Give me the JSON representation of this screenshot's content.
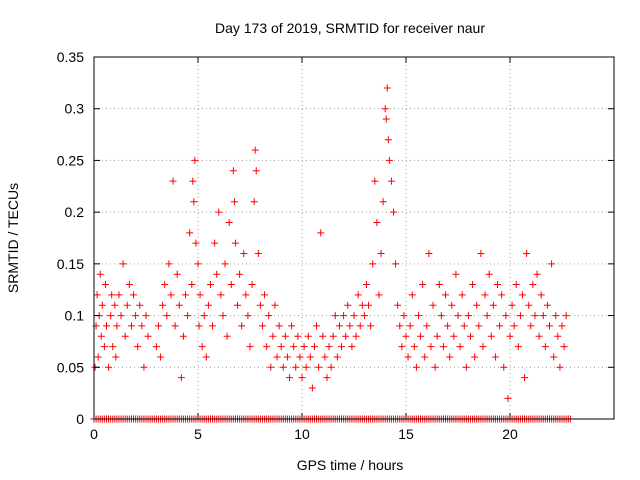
{
  "chart_data": {
    "type": "scatter",
    "title": "Day 173 of 2019, SRMTID for receiver naur",
    "xlabel": "GPS time / hours",
    "ylabel": "SRMTID / TECUs",
    "xlim": [
      0,
      25
    ],
    "ylim": [
      0,
      0.35
    ],
    "xticks": [
      0,
      5,
      10,
      15,
      20
    ],
    "xtick_labels": [
      "0",
      "5",
      "10",
      "15",
      "20"
    ],
    "yticks": [
      0,
      0.05,
      0.1,
      0.15,
      0.2,
      0.25,
      0.3,
      0.35
    ],
    "ytick_labels": [
      "0",
      "0.05",
      "0.1",
      "0.15",
      "0.2",
      "0.25",
      "0.3",
      "0.35"
    ],
    "grid": true,
    "marker": "plus",
    "marker_color": "#ff0000",
    "series": [
      {
        "name": "SRMTID",
        "points": [
          [
            0.05,
            0.05
          ],
          [
            0.1,
            0.09
          ],
          [
            0.15,
            0.12
          ],
          [
            0.2,
            0.06
          ],
          [
            0.25,
            0.1
          ],
          [
            0.3,
            0.14
          ],
          [
            0.35,
            0.08
          ],
          [
            0.4,
            0.11
          ],
          [
            0.5,
            0.07
          ],
          [
            0.55,
            0.13
          ],
          [
            0.6,
            0.09
          ],
          [
            0.7,
            0.05
          ],
          [
            0.8,
            0.1
          ],
          [
            0.85,
            0.12
          ],
          [
            0.9,
            0.07
          ],
          [
            1.0,
            0.11
          ],
          [
            1.05,
            0.06
          ],
          [
            1.1,
            0.09
          ],
          [
            1.2,
            0.12
          ],
          [
            1.3,
            0.1
          ],
          [
            1.4,
            0.15
          ],
          [
            1.5,
            0.08
          ],
          [
            1.6,
            0.11
          ],
          [
            1.7,
            0.13
          ],
          [
            1.8,
            0.09
          ],
          [
            1.9,
            0.12
          ],
          [
            2.0,
            0.1
          ],
          [
            2.1,
            0.07
          ],
          [
            2.2,
            0.11
          ],
          [
            2.3,
            0.09
          ],
          [
            2.4,
            0.05
          ],
          [
            2.5,
            0.1
          ],
          [
            2.6,
            0.08
          ],
          [
            3.0,
            0.07
          ],
          [
            3.1,
            0.09
          ],
          [
            3.2,
            0.06
          ],
          [
            3.3,
            0.11
          ],
          [
            3.4,
            0.13
          ],
          [
            3.5,
            0.1
          ],
          [
            3.6,
            0.15
          ],
          [
            3.7,
            0.12
          ],
          [
            3.8,
            0.23
          ],
          [
            3.9,
            0.09
          ],
          [
            4.0,
            0.14
          ],
          [
            4.1,
            0.11
          ],
          [
            4.2,
            0.04
          ],
          [
            4.3,
            0.08
          ],
          [
            4.4,
            0.12
          ],
          [
            4.5,
            0.1
          ],
          [
            4.6,
            0.18
          ],
          [
            4.7,
            0.13
          ],
          [
            4.75,
            0.23
          ],
          [
            4.8,
            0.21
          ],
          [
            4.85,
            0.25
          ],
          [
            4.9,
            0.17
          ],
          [
            5.0,
            0.15
          ],
          [
            5.05,
            0.09
          ],
          [
            5.1,
            0.12
          ],
          [
            5.2,
            0.07
          ],
          [
            5.3,
            0.1
          ],
          [
            5.4,
            0.06
          ],
          [
            5.5,
            0.11
          ],
          [
            5.6,
            0.13
          ],
          [
            5.7,
            0.09
          ],
          [
            5.8,
            0.17
          ],
          [
            5.9,
            0.14
          ],
          [
            6.0,
            0.2
          ],
          [
            6.1,
            0.12
          ],
          [
            6.2,
            0.1
          ],
          [
            6.3,
            0.15
          ],
          [
            6.4,
            0.08
          ],
          [
            6.5,
            0.19
          ],
          [
            6.6,
            0.13
          ],
          [
            6.7,
            0.24
          ],
          [
            6.75,
            0.21
          ],
          [
            6.8,
            0.17
          ],
          [
            6.9,
            0.11
          ],
          [
            7.0,
            0.14
          ],
          [
            7.1,
            0.09
          ],
          [
            7.2,
            0.16
          ],
          [
            7.3,
            0.12
          ],
          [
            7.4,
            0.1
          ],
          [
            7.5,
            0.07
          ],
          [
            7.6,
            0.13
          ],
          [
            7.7,
            0.21
          ],
          [
            7.75,
            0.26
          ],
          [
            7.8,
            0.24
          ],
          [
            7.9,
            0.16
          ],
          [
            8.0,
            0.11
          ],
          [
            8.1,
            0.09
          ],
          [
            8.2,
            0.12
          ],
          [
            8.3,
            0.07
          ],
          [
            8.4,
            0.1
          ],
          [
            8.5,
            0.05
          ],
          [
            8.6,
            0.08
          ],
          [
            8.7,
            0.11
          ],
          [
            8.8,
            0.06
          ],
          [
            8.9,
            0.09
          ],
          [
            9.0,
            0.07
          ],
          [
            9.1,
            0.05
          ],
          [
            9.2,
            0.08
          ],
          [
            9.3,
            0.06
          ],
          [
            9.4,
            0.04
          ],
          [
            9.5,
            0.09
          ],
          [
            9.6,
            0.07
          ],
          [
            9.7,
            0.05
          ],
          [
            9.8,
            0.08
          ],
          [
            9.9,
            0.06
          ],
          [
            10.0,
            0.04
          ],
          [
            10.1,
            0.07
          ],
          [
            10.2,
            0.05
          ],
          [
            10.3,
            0.08
          ],
          [
            10.4,
            0.06
          ],
          [
            10.5,
            0.03
          ],
          [
            10.6,
            0.07
          ],
          [
            10.7,
            0.09
          ],
          [
            10.8,
            0.05
          ],
          [
            10.9,
            0.18
          ],
          [
            11.0,
            0.08
          ],
          [
            11.1,
            0.06
          ],
          [
            11.2,
            0.04
          ],
          [
            11.3,
            0.07
          ],
          [
            11.4,
            0.05
          ],
          [
            11.5,
            0.08
          ],
          [
            11.6,
            0.1
          ],
          [
            11.7,
            0.06
          ],
          [
            11.8,
            0.09
          ],
          [
            11.9,
            0.07
          ],
          [
            12.0,
            0.1
          ],
          [
            12.1,
            0.08
          ],
          [
            12.2,
            0.11
          ],
          [
            12.3,
            0.09
          ],
          [
            12.4,
            0.07
          ],
          [
            12.5,
            0.1
          ],
          [
            12.6,
            0.08
          ],
          [
            12.7,
            0.12
          ],
          [
            12.8,
            0.09
          ],
          [
            12.9,
            0.11
          ],
          [
            13.0,
            0.1
          ],
          [
            13.1,
            0.13
          ],
          [
            13.2,
            0.11
          ],
          [
            13.3,
            0.09
          ],
          [
            13.4,
            0.15
          ],
          [
            13.5,
            0.23
          ],
          [
            13.6,
            0.19
          ],
          [
            13.7,
            0.12
          ],
          [
            13.8,
            0.16
          ],
          [
            13.9,
            0.21
          ],
          [
            14.0,
            0.3
          ],
          [
            14.05,
            0.29
          ],
          [
            14.1,
            0.32
          ],
          [
            14.15,
            0.27
          ],
          [
            14.2,
            0.25
          ],
          [
            14.3,
            0.23
          ],
          [
            14.4,
            0.2
          ],
          [
            14.5,
            0.15
          ],
          [
            14.6,
            0.11
          ],
          [
            14.7,
            0.09
          ],
          [
            14.8,
            0.07
          ],
          [
            14.9,
            0.1
          ],
          [
            15.0,
            0.08
          ],
          [
            15.1,
            0.06
          ],
          [
            15.2,
            0.09
          ],
          [
            15.3,
            0.12
          ],
          [
            15.4,
            0.07
          ],
          [
            15.5,
            0.05
          ],
          [
            15.6,
            0.1
          ],
          [
            15.7,
            0.08
          ],
          [
            15.8,
            0.13
          ],
          [
            15.9,
            0.06
          ],
          [
            16.0,
            0.09
          ],
          [
            16.1,
            0.16
          ],
          [
            16.2,
            0.07
          ],
          [
            16.3,
            0.11
          ],
          [
            16.4,
            0.05
          ],
          [
            16.5,
            0.08
          ],
          [
            16.6,
            0.13
          ],
          [
            16.7,
            0.1
          ],
          [
            16.8,
            0.07
          ],
          [
            16.9,
            0.12
          ],
          [
            17.0,
            0.09
          ],
          [
            17.1,
            0.06
          ],
          [
            17.2,
            0.11
          ],
          [
            17.3,
            0.08
          ],
          [
            17.4,
            0.14
          ],
          [
            17.5,
            0.1
          ],
          [
            17.6,
            0.07
          ],
          [
            17.7,
            0.12
          ],
          [
            17.8,
            0.09
          ],
          [
            17.9,
            0.05
          ],
          [
            18.0,
            0.1
          ],
          [
            18.1,
            0.08
          ],
          [
            18.2,
            0.13
          ],
          [
            18.3,
            0.06
          ],
          [
            18.4,
            0.11
          ],
          [
            18.5,
            0.09
          ],
          [
            18.6,
            0.16
          ],
          [
            18.7,
            0.07
          ],
          [
            18.8,
            0.12
          ],
          [
            18.9,
            0.1
          ],
          [
            19.0,
            0.14
          ],
          [
            19.1,
            0.08
          ],
          [
            19.2,
            0.11
          ],
          [
            19.3,
            0.06
          ],
          [
            19.4,
            0.13
          ],
          [
            19.5,
            0.09
          ],
          [
            19.6,
            0.12
          ],
          [
            19.7,
            0.05
          ],
          [
            19.8,
            0.1
          ],
          [
            19.9,
            0.02
          ],
          [
            20.0,
            0.08
          ],
          [
            20.1,
            0.11
          ],
          [
            20.2,
            0.09
          ],
          [
            20.3,
            0.13
          ],
          [
            20.4,
            0.07
          ],
          [
            20.5,
            0.1
          ],
          [
            20.6,
            0.12
          ],
          [
            20.7,
            0.04
          ],
          [
            20.8,
            0.16
          ],
          [
            20.9,
            0.11
          ],
          [
            21.0,
            0.09
          ],
          [
            21.1,
            0.13
          ],
          [
            21.2,
            0.1
          ],
          [
            21.3,
            0.14
          ],
          [
            21.4,
            0.08
          ],
          [
            21.5,
            0.12
          ],
          [
            21.6,
            0.1
          ],
          [
            21.7,
            0.07
          ],
          [
            21.8,
            0.11
          ],
          [
            21.9,
            0.09
          ],
          [
            22.0,
            0.15
          ],
          [
            22.1,
            0.06
          ],
          [
            22.2,
            0.1
          ],
          [
            22.3,
            0.08
          ],
          [
            22.4,
            0.05
          ],
          [
            22.5,
            0.09
          ],
          [
            22.6,
            0.07
          ],
          [
            22.7,
            0.1
          ]
        ]
      }
    ],
    "zero_row": {
      "x_start": 0,
      "x_end": 22.9,
      "step": 0.1,
      "y": 0
    }
  }
}
